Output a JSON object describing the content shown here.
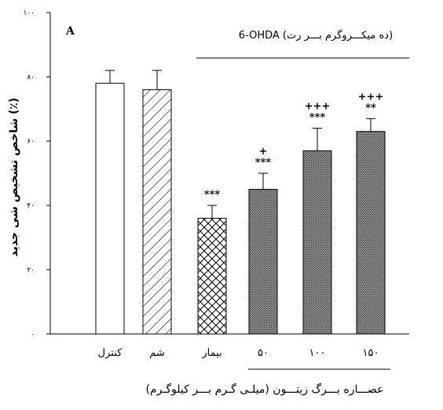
{
  "chart_data": {
    "type": "bar",
    "panel_label": "A",
    "categories": [
      "کنترل",
      "شم",
      "بیمار",
      "۵۰",
      "۱۰۰",
      "۱۵۰"
    ],
    "values": [
      78,
      76,
      36,
      45,
      57,
      63
    ],
    "errors": [
      4,
      6,
      4,
      5,
      7,
      4
    ],
    "patterns": [
      "white",
      "diagonal",
      "crosshatch",
      "dense",
      "dense",
      "dense"
    ],
    "significance": [
      [],
      [],
      [
        "***"
      ],
      [
        "+",
        "***"
      ],
      [
        "+++",
        "***"
      ],
      [
        "+++",
        "**"
      ]
    ],
    "ylim": [
      0,
      100
    ],
    "yticks": [
      "۰",
      "۲۰",
      "۴۰",
      "۶۰",
      "۸۰",
      "۱۰۰"
    ],
    "ylabel": "شاخص تشخیص شی جدید (٪)",
    "xlabel": "عصـــاره بـــرگ زیتـــون (میلـی گـرم بـــر کیلوگـرم)",
    "group_header": "6-OHDA (ده میکـــروگرم بـــر رت)"
  }
}
